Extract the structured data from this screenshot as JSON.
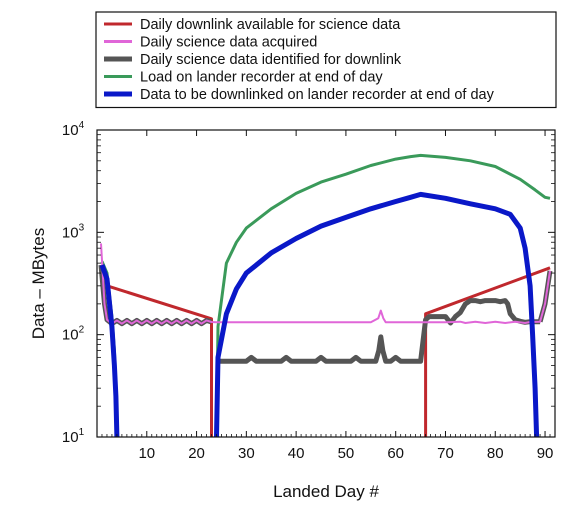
{
  "chart_data": {
    "type": "line",
    "title": "",
    "xlabel": "Landed Day #",
    "ylabel": "Data – MBytes",
    "x_range": [
      0,
      92
    ],
    "y_range": [
      10,
      10000
    ],
    "y_scale": "log",
    "x_ticks": [
      10,
      20,
      30,
      40,
      50,
      60,
      70,
      80,
      90
    ],
    "y_ticks": [
      {
        "value": 10,
        "base": "10",
        "exp": "1"
      },
      {
        "value": 100,
        "base": "10",
        "exp": "2"
      },
      {
        "value": 1000,
        "base": "10",
        "exp": "3"
      },
      {
        "value": 10000,
        "base": "10",
        "exp": "4"
      }
    ],
    "grid": false,
    "legend_position": "top",
    "series": [
      {
        "name": "Daily downlink available for science data",
        "color": "#c0282d",
        "width": 3,
        "segments": [
          [
            [
              2,
              300
            ],
            [
              23,
              143
            ],
            [
              23,
              10
            ]
          ],
          [
            [
              66,
              10
            ],
            [
              66,
              160
            ],
            [
              91,
              450
            ]
          ]
        ]
      },
      {
        "name": "Daily science data acquired",
        "color": "#e066d8",
        "width": 2,
        "segments": [
          [
            [
              0.8,
              780
            ],
            [
              1.5,
              200
            ],
            [
              2,
              140
            ],
            [
              3,
              128
            ],
            [
              4,
              138
            ],
            [
              5,
              128
            ],
            [
              6,
              138
            ],
            [
              7,
              128
            ],
            [
              8,
              138
            ],
            [
              9,
              128
            ],
            [
              10,
              138
            ],
            [
              11,
              128
            ],
            [
              12,
              138
            ],
            [
              13,
              128
            ],
            [
              14,
              138
            ],
            [
              15,
              128
            ],
            [
              16,
              138
            ],
            [
              17,
              128
            ],
            [
              18,
              138
            ],
            [
              19,
              128
            ],
            [
              20,
              138
            ],
            [
              21,
              128
            ],
            [
              22,
              138
            ],
            [
              23,
              133
            ],
            [
              24,
              132
            ],
            [
              30,
              132
            ],
            [
              40,
              132
            ],
            [
              50,
              132
            ],
            [
              55,
              132
            ],
            [
              56.5,
              145
            ],
            [
              57,
              172
            ],
            [
              57.5,
              145
            ],
            [
              58,
              132
            ],
            [
              65,
              132
            ],
            [
              70,
              132
            ],
            [
              73,
              134
            ],
            [
              74,
              130
            ],
            [
              76,
              134
            ],
            [
              78,
              130
            ],
            [
              80,
              134
            ],
            [
              82,
              130
            ],
            [
              84,
              134
            ],
            [
              86,
              130
            ],
            [
              87,
              133
            ],
            [
              89,
              134
            ],
            [
              90,
              200
            ],
            [
              91,
              420
            ]
          ]
        ]
      },
      {
        "name": "Daily science data identified for downlink",
        "color": "#555555",
        "width": 5,
        "segments": [
          [
            [
              0.8,
              480
            ],
            [
              1.5,
              200
            ],
            [
              2,
              140
            ],
            [
              3,
              128
            ],
            [
              4,
              138
            ],
            [
              5,
              128
            ],
            [
              6,
              138
            ],
            [
              7,
              128
            ],
            [
              8,
              138
            ],
            [
              9,
              128
            ],
            [
              10,
              138
            ],
            [
              11,
              128
            ],
            [
              12,
              138
            ],
            [
              13,
              128
            ],
            [
              14,
              138
            ],
            [
              15,
              128
            ],
            [
              16,
              138
            ],
            [
              17,
              128
            ],
            [
              18,
              138
            ],
            [
              19,
              128
            ],
            [
              20,
              138
            ],
            [
              21,
              128
            ],
            [
              22,
              138
            ],
            [
              23,
              133
            ]
          ],
          [
            [
              24,
              55
            ],
            [
              30,
              55
            ],
            [
              31,
              60
            ],
            [
              32,
              55
            ],
            [
              37,
              55
            ],
            [
              38,
              60
            ],
            [
              39,
              55
            ],
            [
              44,
              55
            ],
            [
              45,
              60
            ],
            [
              46,
              55
            ],
            [
              51,
              55
            ],
            [
              52,
              60
            ],
            [
              53,
              55
            ],
            [
              56,
              55
            ],
            [
              56.6,
              70
            ],
            [
              57,
              95
            ],
            [
              57.4,
              70
            ],
            [
              58,
              55
            ],
            [
              59,
              55
            ],
            [
              60,
              60
            ],
            [
              61,
              55
            ],
            [
              65,
              55
            ],
            [
              66,
              140
            ],
            [
              66.7,
              150
            ],
            [
              70,
              150
            ],
            [
              71,
              130
            ],
            [
              72,
              150
            ],
            [
              73,
              165
            ],
            [
              74,
              200
            ],
            [
              75,
              215
            ],
            [
              76,
              215
            ],
            [
              77,
              210
            ],
            [
              78,
              215
            ],
            [
              80,
              215
            ],
            [
              81,
              210
            ],
            [
              82,
              215
            ],
            [
              82.5,
              200
            ],
            [
              83,
              160
            ],
            [
              84,
              140
            ],
            [
              85,
              135
            ],
            [
              86,
              132
            ],
            [
              87,
              134
            ],
            [
              89,
              134
            ]
          ],
          [
            [
              89,
              134
            ],
            [
              90,
              200
            ],
            [
              91,
              420
            ]
          ]
        ]
      },
      {
        "name": "Load on lander recorder at end of day",
        "color": "#3a9a5a",
        "width": 3,
        "segments": [
          [
            [
              1,
              520
            ],
            [
              2,
              400
            ],
            [
              3,
              150
            ],
            [
              3.5,
              70
            ],
            [
              3.8,
              30
            ],
            [
              4,
              10
            ]
          ],
          [
            [
              24,
              10
            ],
            [
              24.3,
              120
            ],
            [
              26,
              500
            ],
            [
              28,
              800
            ],
            [
              30,
              1100
            ],
            [
              35,
              1700
            ],
            [
              40,
              2400
            ],
            [
              45,
              3100
            ],
            [
              50,
              3700
            ],
            [
              55,
              4500
            ],
            [
              60,
              5200
            ],
            [
              63,
              5500
            ],
            [
              65,
              5650
            ],
            [
              70,
              5400
            ],
            [
              75,
              5000
            ],
            [
              80,
              4400
            ],
            [
              85,
              3300
            ],
            [
              88,
              2600
            ],
            [
              90,
              2200
            ],
            [
              91,
              2150
            ]
          ]
        ]
      },
      {
        "name": "Data to be downlinked on lander recorder at end of day",
        "color": "#0a18c8",
        "width": 5,
        "segments": [
          [
            [
              1,
              480
            ],
            [
              2,
              350
            ],
            [
              3,
              120
            ],
            [
              3.5,
              50
            ],
            [
              3.8,
              25
            ],
            [
              4,
              10
            ]
          ],
          [
            [
              24,
              10
            ],
            [
              24.3,
              60
            ],
            [
              26,
              160
            ],
            [
              28,
              280
            ],
            [
              30,
              400
            ],
            [
              35,
              630
            ],
            [
              40,
              870
            ],
            [
              45,
              1150
            ],
            [
              50,
              1400
            ],
            [
              55,
              1700
            ],
            [
              60,
              2000
            ],
            [
              63,
              2200
            ],
            [
              65,
              2350
            ],
            [
              70,
              2150
            ],
            [
              75,
              1900
            ],
            [
              80,
              1700
            ],
            [
              83,
              1500
            ],
            [
              85,
              1100
            ],
            [
              86,
              700
            ],
            [
              87,
              300
            ],
            [
              87.5,
              100
            ],
            [
              88,
              30
            ],
            [
              88.3,
              10
            ]
          ]
        ]
      }
    ]
  }
}
